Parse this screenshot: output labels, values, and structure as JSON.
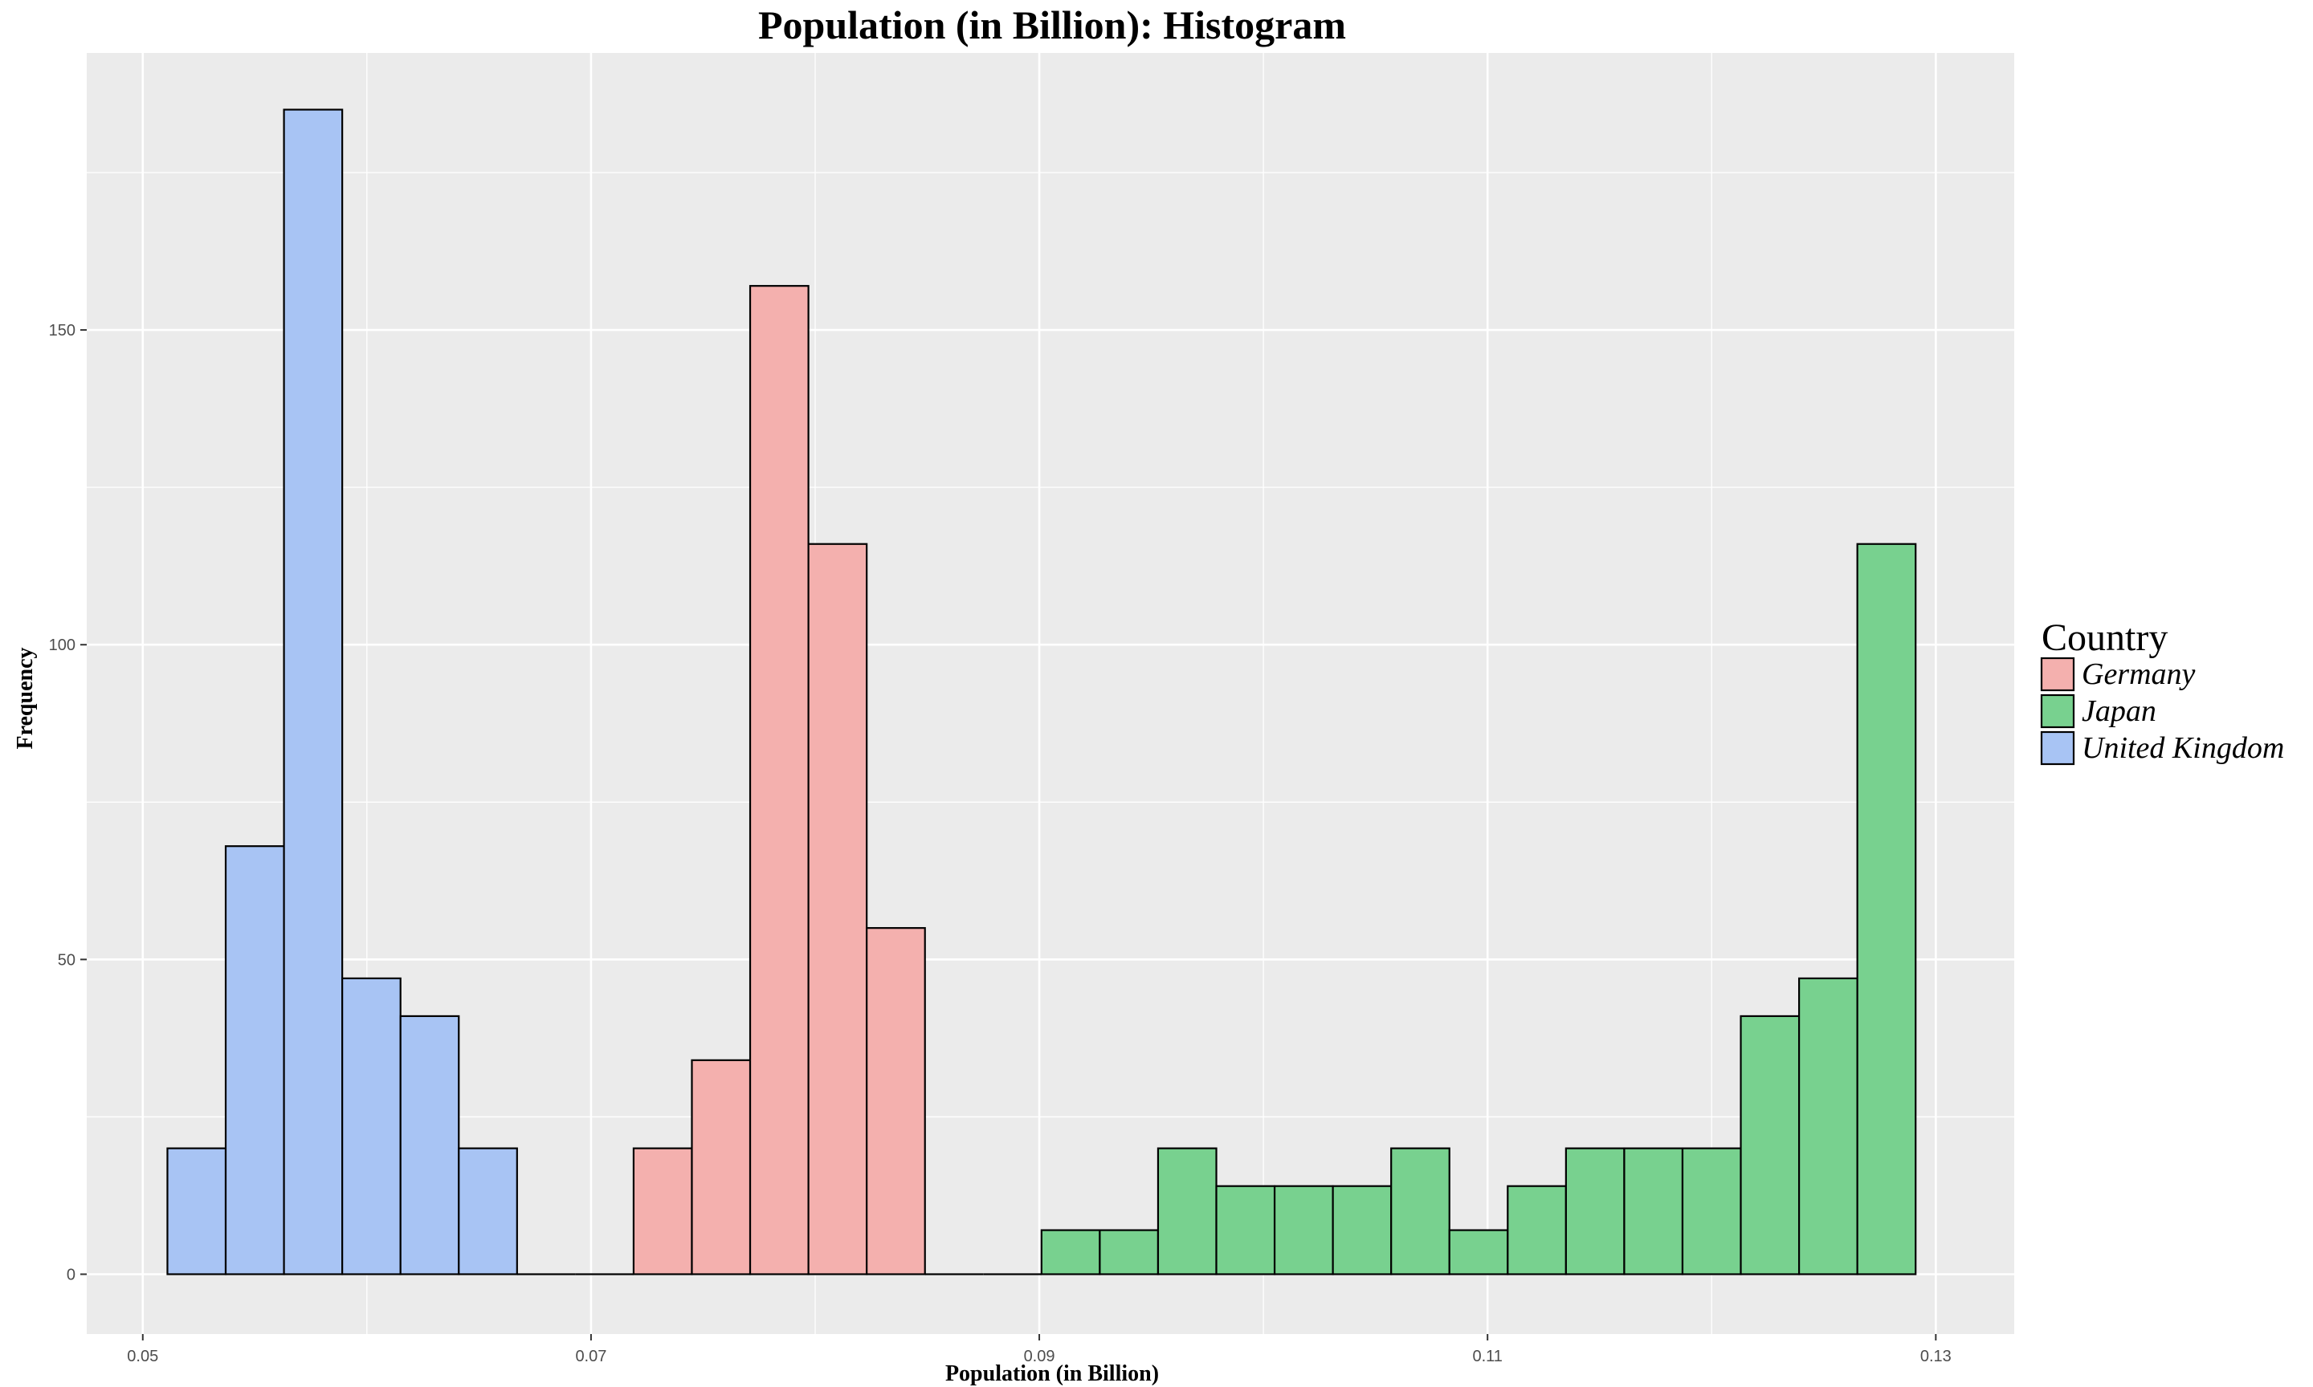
{
  "colors": {
    "panel_bg": "#EBEBEB",
    "grid": "#FFFFFF",
    "bar_stroke": "#000000",
    "germany": "#F4B0AE",
    "japan": "#78D18F",
    "united_kingdom": "#A8C4F4"
  },
  "chart_data": {
    "type": "bar",
    "title": "Population (in Billion): Histogram",
    "xlabel": "Population (in Billion)",
    "ylabel": "Frequency",
    "xlim": [
      0.0475,
      0.1335
    ],
    "ylim": [
      -9.5,
      194
    ],
    "x_ticks": [
      0.05,
      0.07,
      0.09,
      0.11,
      0.13
    ],
    "x_tick_labels": [
      "0.05",
      "0.07",
      "0.09",
      "0.11",
      "0.13"
    ],
    "y_ticks": [
      0,
      50,
      100,
      150
    ],
    "y_tick_labels": [
      "0",
      "50",
      "100",
      "150"
    ],
    "grid": true,
    "legend": {
      "title": "Country",
      "position": "right"
    },
    "bin_width": 0.0026,
    "bin_start": 0.0511,
    "series": [
      {
        "name": "United Kingdom",
        "color_key": "united_kingdom",
        "bins": [
          {
            "start": 0.0511,
            "count": 20
          },
          {
            "start": 0.0537,
            "count": 68
          },
          {
            "start": 0.0563,
            "count": 185
          },
          {
            "start": 0.0589,
            "count": 47
          },
          {
            "start": 0.0615,
            "count": 41
          },
          {
            "start": 0.0641,
            "count": 20
          }
        ]
      },
      {
        "name": "Germany",
        "color_key": "germany",
        "bins": [
          {
            "start": 0.0719,
            "count": 20
          },
          {
            "start": 0.0745,
            "count": 34
          },
          {
            "start": 0.0771,
            "count": 157
          },
          {
            "start": 0.0797,
            "count": 116
          },
          {
            "start": 0.0823,
            "count": 55
          }
        ]
      },
      {
        "name": "Japan",
        "color_key": "japan",
        "bins": [
          {
            "start": 0.0901,
            "count": 7
          },
          {
            "start": 0.0927,
            "count": 7
          },
          {
            "start": 0.0953,
            "count": 20
          },
          {
            "start": 0.0979,
            "count": 14
          },
          {
            "start": 0.1005,
            "count": 14
          },
          {
            "start": 0.1031,
            "count": 14
          },
          {
            "start": 0.1057,
            "count": 20
          },
          {
            "start": 0.1083,
            "count": 7
          },
          {
            "start": 0.1109,
            "count": 14
          },
          {
            "start": 0.1135,
            "count": 20
          },
          {
            "start": 0.1161,
            "count": 20
          },
          {
            "start": 0.1187,
            "count": 20
          },
          {
            "start": 0.1213,
            "count": 41
          },
          {
            "start": 0.1239,
            "count": 47
          },
          {
            "start": 0.1265,
            "count": 116
          }
        ]
      }
    ],
    "legend_order": [
      "Germany",
      "Japan",
      "United Kingdom"
    ]
  }
}
